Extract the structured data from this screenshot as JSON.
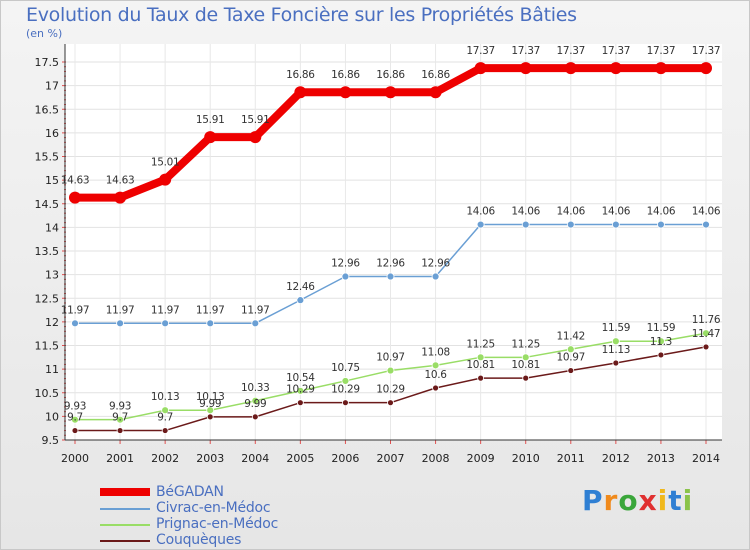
{
  "title": "Evolution du Taux de Taxe Foncière sur les Propriétés Bâties",
  "unit_label": "(en %)",
  "brand": {
    "letters": [
      "P",
      "r",
      "o",
      "x",
      "i",
      "t",
      "i"
    ],
    "colors": [
      "#2f7fd3",
      "#f08a1c",
      "#3aa63a",
      "#e03030",
      "#f0b81c",
      "#2f7fd3",
      "#8bc34a"
    ]
  },
  "chart_data": {
    "type": "line",
    "title": "Evolution du Taux de Taxe Foncière sur les Propriétés Bâties",
    "ylabel": "(en %)",
    "xlabel": "",
    "ylim": [
      9.5,
      17.5
    ],
    "yticks": [
      "9.5",
      "10",
      "10.5",
      "11",
      "11.5",
      "12",
      "12.5",
      "13",
      "13.5",
      "14",
      "14.5",
      "15",
      "15.5",
      "16",
      "16.5",
      "17",
      "17.5"
    ],
    "x": [
      "2000",
      "2001",
      "2002",
      "2003",
      "2004",
      "2005",
      "2006",
      "2007",
      "2008",
      "2009",
      "2010",
      "2011",
      "2012",
      "2013",
      "2014"
    ],
    "series": [
      {
        "name": "BéGADAN",
        "color": "#ee0000",
        "values": [
          14.63,
          14.63,
          15.01,
          15.91,
          15.91,
          16.86,
          16.86,
          16.86,
          16.86,
          17.37,
          17.37,
          17.37,
          17.37,
          17.37,
          17.37
        ],
        "labels": [
          "14.63",
          "14.63",
          "15.01",
          "15.91",
          "15.91",
          "16.86",
          "16.86",
          "16.86",
          "16.86",
          "17.37",
          "17.37",
          "17.37",
          "17.37",
          "17.37",
          "17.37"
        ]
      },
      {
        "name": "Civrac-en-Médoc",
        "color": "#6a9fd4",
        "values": [
          11.97,
          11.97,
          11.97,
          11.97,
          11.97,
          12.46,
          12.96,
          12.96,
          12.96,
          14.06,
          14.06,
          14.06,
          14.06,
          14.06,
          14.06
        ],
        "labels": [
          "11.97",
          "11.97",
          "11.97",
          "11.97",
          "11.97",
          "12.46",
          "12.96",
          "12.96",
          "12.96",
          "14.06",
          "14.06",
          "14.06",
          "14.06",
          "14.06",
          "14.06"
        ]
      },
      {
        "name": "Prignac-en-Médoc",
        "color": "#99dd66",
        "values": [
          9.93,
          9.93,
          10.13,
          10.13,
          10.33,
          10.54,
          10.75,
          10.97,
          11.08,
          11.25,
          11.25,
          11.42,
          11.59,
          11.59,
          11.76
        ],
        "labels": [
          "9.93",
          "9.93",
          "10.13",
          "10.13",
          "10.33",
          "10.54",
          "10.75",
          "10.97",
          "11.08",
          "11.25",
          "11.25",
          "11.42",
          "11.59",
          "11.59",
          "11.76"
        ]
      },
      {
        "name": "Couquèques",
        "color": "#6b1a1a",
        "values": [
          9.7,
          9.7,
          9.7,
          9.99,
          9.99,
          10.29,
          10.29,
          10.29,
          10.6,
          10.81,
          10.81,
          10.97,
          11.13,
          11.3,
          11.47
        ],
        "labels": [
          "9.7",
          "9.7",
          "9.7",
          "9.99",
          "9.99",
          "10.29",
          "10.29",
          "10.29",
          "10.6",
          "10.81",
          "10.81",
          "10.97",
          "11.13",
          "11.3",
          "11.47"
        ]
      }
    ]
  }
}
